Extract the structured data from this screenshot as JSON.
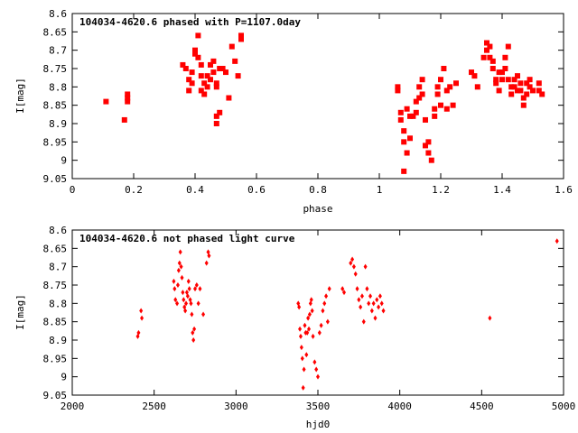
{
  "colors": {
    "points": "#ff0000",
    "axes": "#000000",
    "background": "#ffffff"
  },
  "chart_data": [
    {
      "type": "scatter",
      "title": "104034-4620.6 phased with P=1107.0day",
      "xlabel": "phase",
      "ylabel": "I[mag]",
      "xlim": [
        0,
        1.6
      ],
      "ylim": [
        9.05,
        8.6
      ],
      "y_inverted": true,
      "grid": false,
      "xticks": [
        "0",
        "0.2",
        "0.4",
        "0.6",
        "0.8",
        "1",
        "1.2",
        "1.4",
        "1.6"
      ],
      "yticks": [
        "8.6",
        "8.65",
        "8.7",
        "8.75",
        "8.8",
        "8.85",
        "8.9",
        "8.95",
        "9",
        "9.05"
      ],
      "series": [
        {
          "marker": "square",
          "points": [
            [
              0.11,
              8.84
            ],
            [
              0.17,
              8.89
            ],
            [
              0.18,
              8.82
            ],
            [
              0.18,
              8.83
            ],
            [
              0.18,
              8.84
            ],
            [
              0.36,
              8.74
            ],
            [
              0.37,
              8.75
            ],
            [
              0.38,
              8.78
            ],
            [
              0.38,
              8.81
            ],
            [
              0.39,
              8.79
            ],
            [
              0.39,
              8.76
            ],
            [
              0.4,
              8.7
            ],
            [
              0.4,
              8.71
            ],
            [
              0.41,
              8.66
            ],
            [
              0.41,
              8.72
            ],
            [
              0.42,
              8.74
            ],
            [
              0.42,
              8.77
            ],
            [
              0.42,
              8.81
            ],
            [
              0.43,
              8.82
            ],
            [
              0.43,
              8.79
            ],
            [
              0.44,
              8.8
            ],
            [
              0.44,
              8.77
            ],
            [
              0.45,
              8.78
            ],
            [
              0.45,
              8.74
            ],
            [
              0.46,
              8.73
            ],
            [
              0.46,
              8.76
            ],
            [
              0.47,
              8.79
            ],
            [
              0.47,
              8.8
            ],
            [
              0.47,
              8.88
            ],
            [
              0.47,
              8.9
            ],
            [
              0.48,
              8.87
            ],
            [
              0.48,
              8.75
            ],
            [
              0.49,
              8.75
            ],
            [
              0.5,
              8.76
            ],
            [
              0.51,
              8.83
            ],
            [
              0.52,
              8.69
            ],
            [
              0.53,
              8.73
            ],
            [
              0.54,
              8.77
            ],
            [
              0.55,
              8.67
            ],
            [
              0.55,
              8.66
            ],
            [
              1.06,
              8.8
            ],
            [
              1.06,
              8.81
            ],
            [
              1.07,
              8.87
            ],
            [
              1.07,
              8.89
            ],
            [
              1.08,
              8.92
            ],
            [
              1.08,
              8.95
            ],
            [
              1.08,
              9.03
            ],
            [
              1.09,
              8.98
            ],
            [
              1.09,
              8.86
            ],
            [
              1.1,
              8.88
            ],
            [
              1.1,
              8.94
            ],
            [
              1.11,
              8.88
            ],
            [
              1.12,
              8.84
            ],
            [
              1.12,
              8.87
            ],
            [
              1.13,
              8.83
            ],
            [
              1.13,
              8.8
            ],
            [
              1.14,
              8.78
            ],
            [
              1.14,
              8.82
            ],
            [
              1.15,
              8.89
            ],
            [
              1.15,
              8.96
            ],
            [
              1.16,
              8.95
            ],
            [
              1.16,
              8.98
            ],
            [
              1.17,
              9.0
            ],
            [
              1.18,
              8.88
            ],
            [
              1.18,
              8.86
            ],
            [
              1.19,
              8.82
            ],
            [
              1.19,
              8.8
            ],
            [
              1.2,
              8.78
            ],
            [
              1.2,
              8.85
            ],
            [
              1.21,
              8.75
            ],
            [
              1.22,
              8.81
            ],
            [
              1.22,
              8.86
            ],
            [
              1.23,
              8.8
            ],
            [
              1.24,
              8.85
            ],
            [
              1.25,
              8.79
            ],
            [
              1.3,
              8.76
            ],
            [
              1.31,
              8.77
            ],
            [
              1.32,
              8.8
            ],
            [
              1.34,
              8.72
            ],
            [
              1.35,
              8.68
            ],
            [
              1.35,
              8.7
            ],
            [
              1.36,
              8.69
            ],
            [
              1.36,
              8.72
            ],
            [
              1.37,
              8.73
            ],
            [
              1.37,
              8.75
            ],
            [
              1.38,
              8.78
            ],
            [
              1.38,
              8.79
            ],
            [
              1.39,
              8.76
            ],
            [
              1.39,
              8.81
            ],
            [
              1.4,
              8.78
            ],
            [
              1.4,
              8.76
            ],
            [
              1.41,
              8.75
            ],
            [
              1.41,
              8.72
            ],
            [
              1.42,
              8.69
            ],
            [
              1.42,
              8.78
            ],
            [
              1.43,
              8.8
            ],
            [
              1.43,
              8.82
            ],
            [
              1.44,
              8.78
            ],
            [
              1.44,
              8.8
            ],
            [
              1.45,
              8.81
            ],
            [
              1.45,
              8.77
            ],
            [
              1.46,
              8.79
            ],
            [
              1.46,
              8.81
            ],
            [
              1.47,
              8.83
            ],
            [
              1.47,
              8.85
            ],
            [
              1.48,
              8.79
            ],
            [
              1.48,
              8.82
            ],
            [
              1.49,
              8.78
            ],
            [
              1.49,
              8.8
            ],
            [
              1.5,
              8.81
            ],
            [
              1.52,
              8.79
            ],
            [
              1.52,
              8.81
            ],
            [
              1.53,
              8.82
            ]
          ]
        }
      ]
    },
    {
      "type": "scatter",
      "title": "104034-4620.6 not phased light curve",
      "xlabel": "hjd0",
      "ylabel": "I[mag]",
      "xlim": [
        2000,
        5000
      ],
      "ylim": [
        9.05,
        8.6
      ],
      "y_inverted": true,
      "grid": false,
      "xticks": [
        "2000",
        "2500",
        "3000",
        "3500",
        "4000",
        "4500",
        "5000"
      ],
      "yticks": [
        "8.6",
        "8.65",
        "8.7",
        "8.75",
        "8.8",
        "8.85",
        "8.9",
        "8.95",
        "9",
        "9.05"
      ],
      "series": [
        {
          "marker": "diamond",
          "points": [
            [
              2400,
              8.89
            ],
            [
              2405,
              8.88
            ],
            [
              2420,
              8.82
            ],
            [
              2425,
              8.84
            ],
            [
              2620,
              8.74
            ],
            [
              2625,
              8.76
            ],
            [
              2630,
              8.79
            ],
            [
              2640,
              8.8
            ],
            [
              2645,
              8.75
            ],
            [
              2650,
              8.71
            ],
            [
              2655,
              8.69
            ],
            [
              2660,
              8.66
            ],
            [
              2665,
              8.7
            ],
            [
              2670,
              8.73
            ],
            [
              2675,
              8.77
            ],
            [
              2680,
              8.79
            ],
            [
              2685,
              8.81
            ],
            [
              2690,
              8.82
            ],
            [
              2695,
              8.8
            ],
            [
              2700,
              8.77
            ],
            [
              2705,
              8.78
            ],
            [
              2710,
              8.74
            ],
            [
              2715,
              8.76
            ],
            [
              2720,
              8.79
            ],
            [
              2725,
              8.8
            ],
            [
              2730,
              8.83
            ],
            [
              2735,
              8.88
            ],
            [
              2740,
              8.9
            ],
            [
              2745,
              8.87
            ],
            [
              2750,
              8.76
            ],
            [
              2760,
              8.75
            ],
            [
              2770,
              8.8
            ],
            [
              2780,
              8.76
            ],
            [
              2800,
              8.83
            ],
            [
              2820,
              8.69
            ],
            [
              2830,
              8.66
            ],
            [
              2835,
              8.67
            ],
            [
              3380,
              8.8
            ],
            [
              3385,
              8.81
            ],
            [
              3390,
              8.87
            ],
            [
              3395,
              8.89
            ],
            [
              3400,
              8.92
            ],
            [
              3405,
              8.95
            ],
            [
              3410,
              9.03
            ],
            [
              3415,
              8.98
            ],
            [
              3420,
              8.86
            ],
            [
              3425,
              8.88
            ],
            [
              3430,
              8.94
            ],
            [
              3435,
              8.88
            ],
            [
              3440,
              8.84
            ],
            [
              3445,
              8.87
            ],
            [
              3450,
              8.83
            ],
            [
              3455,
              8.8
            ],
            [
              3460,
              8.79
            ],
            [
              3465,
              8.82
            ],
            [
              3470,
              8.89
            ],
            [
              3480,
              8.96
            ],
            [
              3490,
              8.98
            ],
            [
              3500,
              9.0
            ],
            [
              3510,
              8.88
            ],
            [
              3520,
              8.86
            ],
            [
              3530,
              8.82
            ],
            [
              3540,
              8.8
            ],
            [
              3550,
              8.78
            ],
            [
              3560,
              8.85
            ],
            [
              3570,
              8.76
            ],
            [
              3650,
              8.76
            ],
            [
              3660,
              8.77
            ],
            [
              3700,
              8.69
            ],
            [
              3710,
              8.68
            ],
            [
              3720,
              8.7
            ],
            [
              3730,
              8.72
            ],
            [
              3740,
              8.76
            ],
            [
              3750,
              8.79
            ],
            [
              3760,
              8.81
            ],
            [
              3770,
              8.78
            ],
            [
              3780,
              8.85
            ],
            [
              3790,
              8.7
            ],
            [
              3800,
              8.76
            ],
            [
              3810,
              8.8
            ],
            [
              3820,
              8.78
            ],
            [
              3830,
              8.82
            ],
            [
              3840,
              8.8
            ],
            [
              3850,
              8.84
            ],
            [
              3860,
              8.79
            ],
            [
              3870,
              8.81
            ],
            [
              3880,
              8.78
            ],
            [
              3890,
              8.8
            ],
            [
              3900,
              8.82
            ],
            [
              4550,
              8.84
            ],
            [
              4960,
              8.63
            ]
          ]
        }
      ]
    }
  ]
}
